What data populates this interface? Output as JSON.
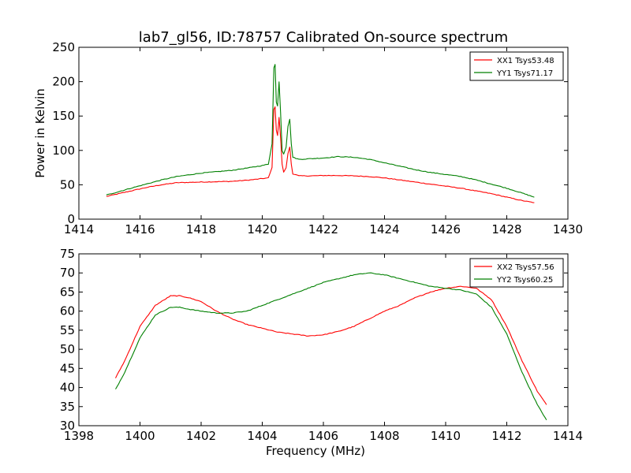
{
  "figure_title": "lab7_gl56, ID:78757 Calibrated On-source spectrum",
  "chart_data": [
    {
      "type": "line",
      "title": "lab7_gl56, ID:78757 Calibrated On-source spectrum",
      "xlabel": "",
      "ylabel": "Power in Kelvin",
      "xlim": [
        1414,
        1430
      ],
      "ylim": [
        0,
        250
      ],
      "xticks": [
        "1414",
        "1416",
        "1418",
        "1420",
        "1422",
        "1424",
        "1426",
        "1428",
        "1430"
      ],
      "yticks": [
        "0",
        "50",
        "100",
        "150",
        "200",
        "250"
      ],
      "grid": false,
      "legend": "top-right",
      "series": [
        {
          "name": "XX1 Tsys53.48",
          "color": "#ff0000",
          "x": [
            1414.9,
            1415.3,
            1415.7,
            1416.2,
            1416.7,
            1417.2,
            1418.0,
            1419.0,
            1419.6,
            1420.0,
            1420.2,
            1420.32,
            1420.38,
            1420.42,
            1420.46,
            1420.5,
            1420.55,
            1420.6,
            1420.65,
            1420.7,
            1420.78,
            1420.84,
            1420.9,
            1420.95,
            1421.0,
            1421.2,
            1421.6,
            1422.0,
            1422.5,
            1423.0,
            1423.5,
            1424.0,
            1424.5,
            1425.0,
            1425.5,
            1426.0,
            1426.5,
            1427.0,
            1427.5,
            1428.0,
            1428.5,
            1428.9
          ],
          "y": [
            33,
            37,
            41,
            46,
            50,
            53,
            54,
            55,
            57,
            59,
            60,
            75,
            160,
            163,
            130,
            122,
            148,
            118,
            80,
            68,
            75,
            95,
            105,
            80,
            66,
            63,
            63,
            63.5,
            63.5,
            63,
            62,
            60,
            57,
            54,
            51,
            48,
            45,
            41,
            37,
            32,
            27,
            24
          ]
        },
        {
          "name": "YY1 Tsys71.17",
          "color": "#008000",
          "x": [
            1414.9,
            1415.3,
            1415.7,
            1416.2,
            1416.7,
            1417.2,
            1418.0,
            1419.0,
            1419.6,
            1420.0,
            1420.2,
            1420.32,
            1420.38,
            1420.42,
            1420.46,
            1420.5,
            1420.55,
            1420.6,
            1420.65,
            1420.7,
            1420.78,
            1420.84,
            1420.9,
            1420.95,
            1421.0,
            1421.2,
            1421.6,
            1422.0,
            1422.5,
            1423.0,
            1423.5,
            1424.0,
            1424.5,
            1425.0,
            1425.5,
            1426.0,
            1426.5,
            1427.0,
            1427.5,
            1428.0,
            1428.5,
            1428.9
          ],
          "y": [
            35,
            40,
            45,
            51,
            57,
            62,
            67,
            71,
            75,
            78,
            80,
            110,
            220,
            225,
            170,
            165,
            200,
            155,
            100,
            95,
            105,
            135,
            145,
            110,
            90,
            87,
            88,
            89,
            91,
            90,
            87,
            82,
            77,
            72,
            68,
            65,
            62,
            57,
            51,
            45,
            38,
            32
          ]
        }
      ]
    },
    {
      "type": "line",
      "title": "",
      "xlabel": "Frequency (MHz)",
      "ylabel": "",
      "xlim": [
        1398,
        1414
      ],
      "ylim": [
        30,
        75
      ],
      "xticks": [
        "1398",
        "1400",
        "1402",
        "1404",
        "1406",
        "1408",
        "1410",
        "1412",
        "1414"
      ],
      "yticks": [
        "30",
        "35",
        "40",
        "45",
        "50",
        "55",
        "60",
        "65",
        "70",
        "75"
      ],
      "grid": false,
      "legend": "top-right",
      "series": [
        {
          "name": "XX2 Tsys57.56",
          "color": "#ff0000",
          "x": [
            1399.2,
            1399.5,
            1400.0,
            1400.5,
            1401.0,
            1401.3,
            1401.6,
            1402.0,
            1402.5,
            1403.0,
            1403.5,
            1404.0,
            1404.5,
            1405.0,
            1405.5,
            1406.0,
            1406.5,
            1407.0,
            1407.5,
            1408.0,
            1408.5,
            1409.0,
            1409.5,
            1410.0,
            1410.5,
            1411.0,
            1411.5,
            1412.0,
            1412.5,
            1413.0,
            1413.3
          ],
          "y": [
            42.5,
            47,
            56,
            61.5,
            64,
            64,
            63.5,
            62.5,
            60,
            58,
            56.5,
            55.5,
            54.5,
            54,
            53.5,
            53.8,
            54.7,
            56,
            58,
            60,
            61.5,
            63.5,
            65,
            66,
            66.5,
            66,
            63,
            56,
            47,
            39,
            35.5
          ]
        },
        {
          "name": "YY2 Tsys60.25",
          "color": "#008000",
          "x": [
            1399.2,
            1399.5,
            1400.0,
            1400.5,
            1401.0,
            1401.3,
            1401.6,
            1402.0,
            1402.5,
            1403.0,
            1403.5,
            1404.0,
            1404.5,
            1405.0,
            1405.5,
            1406.0,
            1406.5,
            1407.0,
            1407.5,
            1408.0,
            1408.5,
            1409.0,
            1409.5,
            1410.0,
            1410.5,
            1411.0,
            1411.5,
            1412.0,
            1412.5,
            1413.0,
            1413.3
          ],
          "y": [
            39.5,
            44,
            53,
            59,
            61,
            61,
            60.5,
            60,
            59.5,
            59.5,
            60,
            61.5,
            63,
            64.5,
            66,
            67.5,
            68.5,
            69.5,
            70,
            69.5,
            68.5,
            67.5,
            66.5,
            66,
            65.5,
            64.5,
            61,
            54,
            44,
            35.5,
            31.5
          ]
        }
      ]
    }
  ]
}
